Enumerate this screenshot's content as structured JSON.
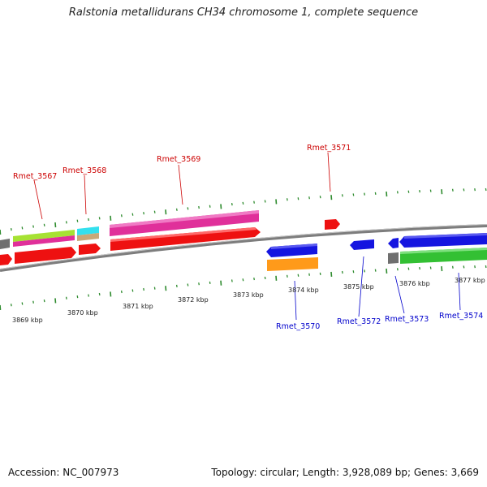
{
  "title": "Ralstonia metallidurans CH34 chromosome 1, complete sequence",
  "footer": {
    "accession": "Accession: NC_007973",
    "info": "Topology: circular; Length: 3,928,089 bp; Genes: 3,669"
  },
  "colors": {
    "backbone": "#8a8a8a",
    "tick": "#2e8b2e",
    "top_label": "#cc0000",
    "bottom_label": "#0000cc"
  },
  "ticks": [
    "3869 kbp",
    "3870 kbp",
    "3871 kbp",
    "3872 kbp",
    "3873 kbp",
    "3874 kbp",
    "3875 kbp",
    "3876 kbp",
    "3877 kbp"
  ],
  "genes_top": [
    {
      "name": "Rmet_3567"
    },
    {
      "name": "Rmet_3568"
    },
    {
      "name": "Rmet_3569"
    },
    {
      "name": "Rmet_3571"
    }
  ],
  "genes_bottom": [
    {
      "name": "Rmet_3570"
    },
    {
      "name": "Rmet_3572"
    },
    {
      "name": "Rmet_3573"
    },
    {
      "name": "Rmet_3574"
    }
  ]
}
